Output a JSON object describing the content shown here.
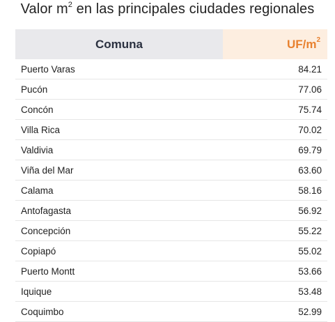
{
  "title": {
    "text_before": "Valor m",
    "sup": "2",
    "text_after": " en las principales ciudades regionales"
  },
  "table": {
    "header_comuna": "Comuna",
    "header_uf_base": "UF/m",
    "header_uf_sup": "2"
  },
  "colors": {
    "header_comuna_bg": "#e9e9ec",
    "header_uf_bg": "#fdeee0",
    "header_uf_text": "#e8812f"
  },
  "chart_data": {
    "type": "table",
    "title": "Valor m² en las principales ciudades regionales",
    "columns": [
      "Comuna",
      "UF/m²"
    ],
    "rows": [
      [
        "Puerto Varas",
        "84.21"
      ],
      [
        "Pucón",
        "77.06"
      ],
      [
        "Concón",
        "75.74"
      ],
      [
        "Villa Rica",
        "70.02"
      ],
      [
        "Valdivia",
        "69.79"
      ],
      [
        "Viña del Mar",
        "63.60"
      ],
      [
        "Calama",
        "58.16"
      ],
      [
        "Antofagasta",
        "56.92"
      ],
      [
        "Concepción",
        "55.22"
      ],
      [
        "Copiapó",
        "55.02"
      ],
      [
        "Puerto Montt",
        "53.66"
      ],
      [
        "Iquique",
        "53.48"
      ],
      [
        "Coquimbo",
        "52.99"
      ]
    ]
  }
}
